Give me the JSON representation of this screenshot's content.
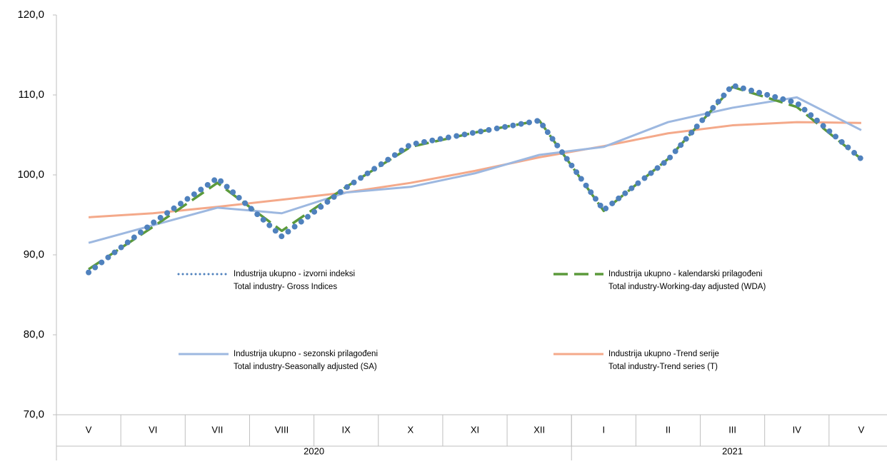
{
  "chart_data": {
    "type": "line",
    "categories": [
      "V",
      "VI",
      "VII",
      "VIII",
      "IX",
      "X",
      "XI",
      "XII",
      "I",
      "II",
      "III",
      "IV",
      "V"
    ],
    "groups": [
      {
        "label": "2020",
        "size": 8
      },
      {
        "label": "2021",
        "size": 5
      }
    ],
    "ylim": [
      70,
      120
    ],
    "yticks": [
      {
        "value": 70,
        "label": "70,0"
      },
      {
        "value": 80,
        "label": "80,0"
      },
      {
        "value": 90,
        "label": "90,0"
      },
      {
        "value": 100,
        "label": "100,0"
      },
      {
        "value": 110,
        "label": "110,0"
      },
      {
        "value": 120,
        "label": "120,0"
      }
    ],
    "series": [
      {
        "name": "Industrija ukupno -Trend serije",
        "subname": "Total industry-Trend series (T)",
        "color": "#f4a98a",
        "style": "solid",
        "values": [
          94.7,
          95.2,
          96.0,
          96.9,
          97.8,
          99.0,
          100.5,
          102.2,
          103.6,
          105.2,
          106.2,
          106.6,
          106.5
        ]
      },
      {
        "name": "Industrija ukupno - sezonski prilagođeni",
        "subname": "Total industry-Seasonally adjusted (SA)",
        "color": "#9db8e0",
        "style": "solid",
        "values": [
          91.5,
          93.7,
          95.9,
          95.2,
          97.8,
          98.5,
          100.2,
          102.5,
          103.5,
          106.6,
          108.4,
          109.7,
          105.6
        ]
      },
      {
        "name": "Industrija ukupno - kalendarski prilagođeni",
        "subname": "Total industry-Working-day adjusted (WDA)",
        "color": "#5b9a3b",
        "style": "dashed",
        "values": [
          88.2,
          93.5,
          99.0,
          93.0,
          98.5,
          103.5,
          105.3,
          106.8,
          95.5,
          102.0,
          111.0,
          108.5,
          102.0
        ]
      },
      {
        "name": "Industrija ukupno - izvorni indeksi",
        "subname": "Total industry- Gross Indices",
        "color": "#4f81bd",
        "style": "dotted",
        "values": [
          87.8,
          94.0,
          99.6,
          92.3,
          98.4,
          103.8,
          105.3,
          106.8,
          95.6,
          101.9,
          111.2,
          109.0,
          102.0
        ]
      }
    ]
  }
}
